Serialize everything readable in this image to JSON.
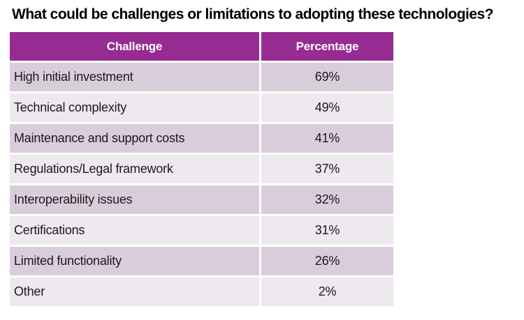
{
  "title": "What could be challenges or limitations to adopting these technologies?",
  "table": {
    "headers": [
      "Challenge",
      "Percentage"
    ],
    "rows": [
      {
        "challenge": "High initial investment",
        "percentage": "69%"
      },
      {
        "challenge": "Technical complexity",
        "percentage": "49%"
      },
      {
        "challenge": "Maintenance and support costs",
        "percentage": "41%"
      },
      {
        "challenge": "Regulations/Legal framework",
        "percentage": "37%"
      },
      {
        "challenge": "Interoperability issues",
        "percentage": "32%"
      },
      {
        "challenge": "Certifications",
        "percentage": "31%"
      },
      {
        "challenge": "Limited functionality",
        "percentage": "26%"
      },
      {
        "challenge": "Other",
        "percentage": "2%"
      }
    ]
  },
  "colors": {
    "header_bg": "#962c91",
    "header_text": "#ffffff",
    "row_dark": "#dacddb",
    "row_light": "#eee9ef",
    "body_text": "#1a1a1a",
    "title_text": "#000000",
    "background": "#ffffff"
  },
  "chart_data": {
    "type": "table",
    "title": "What could be challenges or limitations to adopting these technologies?",
    "columns": [
      "Challenge",
      "Percentage"
    ],
    "rows": [
      [
        "High initial investment",
        69
      ],
      [
        "Technical complexity",
        49
      ],
      [
        "Maintenance and support costs",
        41
      ],
      [
        "Regulations/Legal framework",
        37
      ],
      [
        "Interoperability issues",
        32
      ],
      [
        "Certifications",
        31
      ],
      [
        "Limited functionality",
        26
      ],
      [
        "Other",
        2
      ]
    ],
    "unit": "%",
    "sorted": "descending by percentage"
  }
}
